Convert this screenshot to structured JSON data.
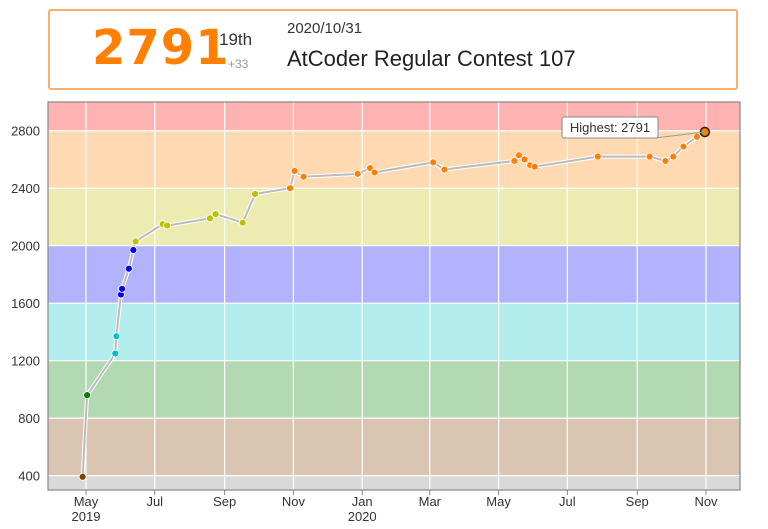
{
  "header": {
    "rating": "2791",
    "rank": "19th",
    "diff": "+33",
    "date": "2020/10/31",
    "contest": "AtCoder Regular Contest 107"
  },
  "chart_data": {
    "type": "line",
    "title": "",
    "xlabel": "",
    "ylabel": "",
    "ylim": [
      300,
      3000
    ],
    "y_ticks": [
      400,
      800,
      1200,
      1600,
      2000,
      2400,
      2800
    ],
    "x_ticks": [
      {
        "label": "May",
        "sub": "2019",
        "date": "2019-05-01"
      },
      {
        "label": "Jul",
        "sub": "",
        "date": "2019-07-01"
      },
      {
        "label": "Sep",
        "sub": "",
        "date": "2019-09-01"
      },
      {
        "label": "Nov",
        "sub": "",
        "date": "2019-11-01"
      },
      {
        "label": "Jan",
        "sub": "2020",
        "date": "2020-01-01"
      },
      {
        "label": "Mar",
        "sub": "",
        "date": "2020-03-01"
      },
      {
        "label": "May",
        "sub": "",
        "date": "2020-05-01"
      },
      {
        "label": "Jul",
        "sub": "",
        "date": "2020-07-01"
      },
      {
        "label": "Sep",
        "sub": "",
        "date": "2020-09-01"
      },
      {
        "label": "Nov",
        "sub": "",
        "date": "2020-11-01"
      }
    ],
    "bands": [
      {
        "from": 0,
        "to": 400,
        "color": "#d9d9d9"
      },
      {
        "from": 400,
        "to": 800,
        "color": "#d9c5b2"
      },
      {
        "from": 800,
        "to": 1200,
        "color": "#b2d9b2"
      },
      {
        "from": 1200,
        "to": 1600,
        "color": "#b2ecec"
      },
      {
        "from": 1600,
        "to": 2000,
        "color": "#b2b2ff"
      },
      {
        "from": 2000,
        "to": 2400,
        "color": "#ececb2"
      },
      {
        "from": 2400,
        "to": 2800,
        "color": "#ffd9b2"
      },
      {
        "from": 2800,
        "to": 3000,
        "color": "#ffb2b2"
      }
    ],
    "series": [
      {
        "points": [
          {
            "x": "2019-04-28",
            "y": 392
          },
          {
            "x": "2019-05-02",
            "y": 960
          },
          {
            "x": "2019-05-27",
            "y": 1250
          },
          {
            "x": "2019-05-28",
            "y": 1370
          },
          {
            "x": "2019-06-01",
            "y": 1660
          },
          {
            "x": "2019-06-02",
            "y": 1700
          },
          {
            "x": "2019-06-08",
            "y": 1840
          },
          {
            "x": "2019-06-12",
            "y": 1970
          },
          {
            "x": "2019-06-14",
            "y": 2030
          },
          {
            "x": "2019-07-08",
            "y": 2150
          },
          {
            "x": "2019-07-12",
            "y": 2140
          },
          {
            "x": "2019-08-19",
            "y": 2190
          },
          {
            "x": "2019-08-24",
            "y": 2220
          },
          {
            "x": "2019-09-17",
            "y": 2160
          },
          {
            "x": "2019-09-28",
            "y": 2360
          },
          {
            "x": "2019-10-29",
            "y": 2400
          },
          {
            "x": "2019-11-02",
            "y": 2520
          },
          {
            "x": "2019-11-10",
            "y": 2480
          },
          {
            "x": "2019-12-28",
            "y": 2500
          },
          {
            "x": "2020-01-08",
            "y": 2540
          },
          {
            "x": "2020-01-12",
            "y": 2510
          },
          {
            "x": "2020-03-04",
            "y": 2580
          },
          {
            "x": "2020-03-14",
            "y": 2530
          },
          {
            "x": "2020-05-15",
            "y": 2590
          },
          {
            "x": "2020-05-19",
            "y": 2630
          },
          {
            "x": "2020-05-24",
            "y": 2600
          },
          {
            "x": "2020-05-29",
            "y": 2560
          },
          {
            "x": "2020-06-02",
            "y": 2550
          },
          {
            "x": "2020-07-28",
            "y": 2620
          },
          {
            "x": "2020-09-12",
            "y": 2620
          },
          {
            "x": "2020-09-26",
            "y": 2590
          },
          {
            "x": "2020-10-03",
            "y": 2620
          },
          {
            "x": "2020-10-12",
            "y": 2690
          },
          {
            "x": "2020-10-24",
            "y": 2758
          },
          {
            "x": "2020-10-31",
            "y": 2791
          }
        ]
      }
    ],
    "highest": {
      "label": "Highest: 2791",
      "value": 2791,
      "x": "2020-10-31"
    },
    "colors": {
      "line": "#bbbbbb",
      "gray": "#808080",
      "brown": "#804000",
      "green": "#008000",
      "cyan": "#00c0c0",
      "blue": "#0000ff",
      "yellow": "#c0c000",
      "orange": "#ff8000",
      "red": "#ff0000"
    }
  }
}
